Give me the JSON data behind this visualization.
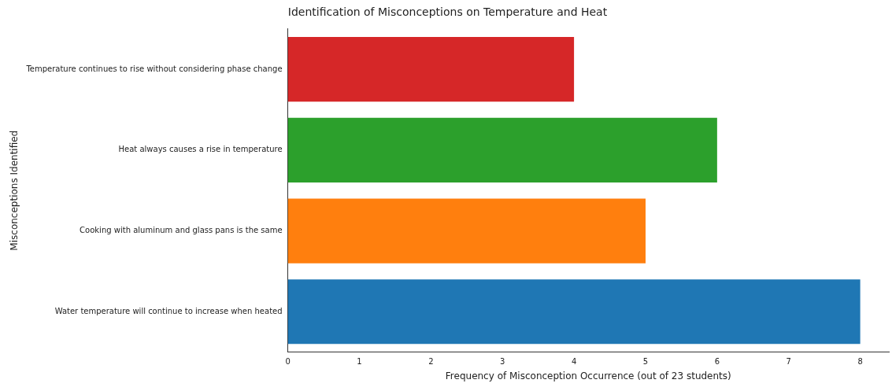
{
  "chart_data": {
    "type": "bar",
    "orientation": "horizontal",
    "title": "Identification of Misconceptions on Temperature and Heat",
    "xlabel": "Frequency of Misconception Occurrence (out of 23 students)",
    "ylabel": "Misconceptions Identified",
    "categories": [
      "Temperature continues to rise without considering phase change",
      "Heat always causes a rise in temperature",
      "Cooking with aluminum and glass pans is the same",
      "Water temperature will continue to increase when heated"
    ],
    "values": [
      4,
      6,
      5,
      8
    ],
    "colors": [
      "#d62728",
      "#2ca02c",
      "#ff7f0e",
      "#1f77b4"
    ],
    "xlim": [
      0,
      8.4
    ],
    "xticks": [
      0,
      1,
      2,
      3,
      4,
      5,
      6,
      7,
      8
    ],
    "grid": false,
    "legend": false
  }
}
